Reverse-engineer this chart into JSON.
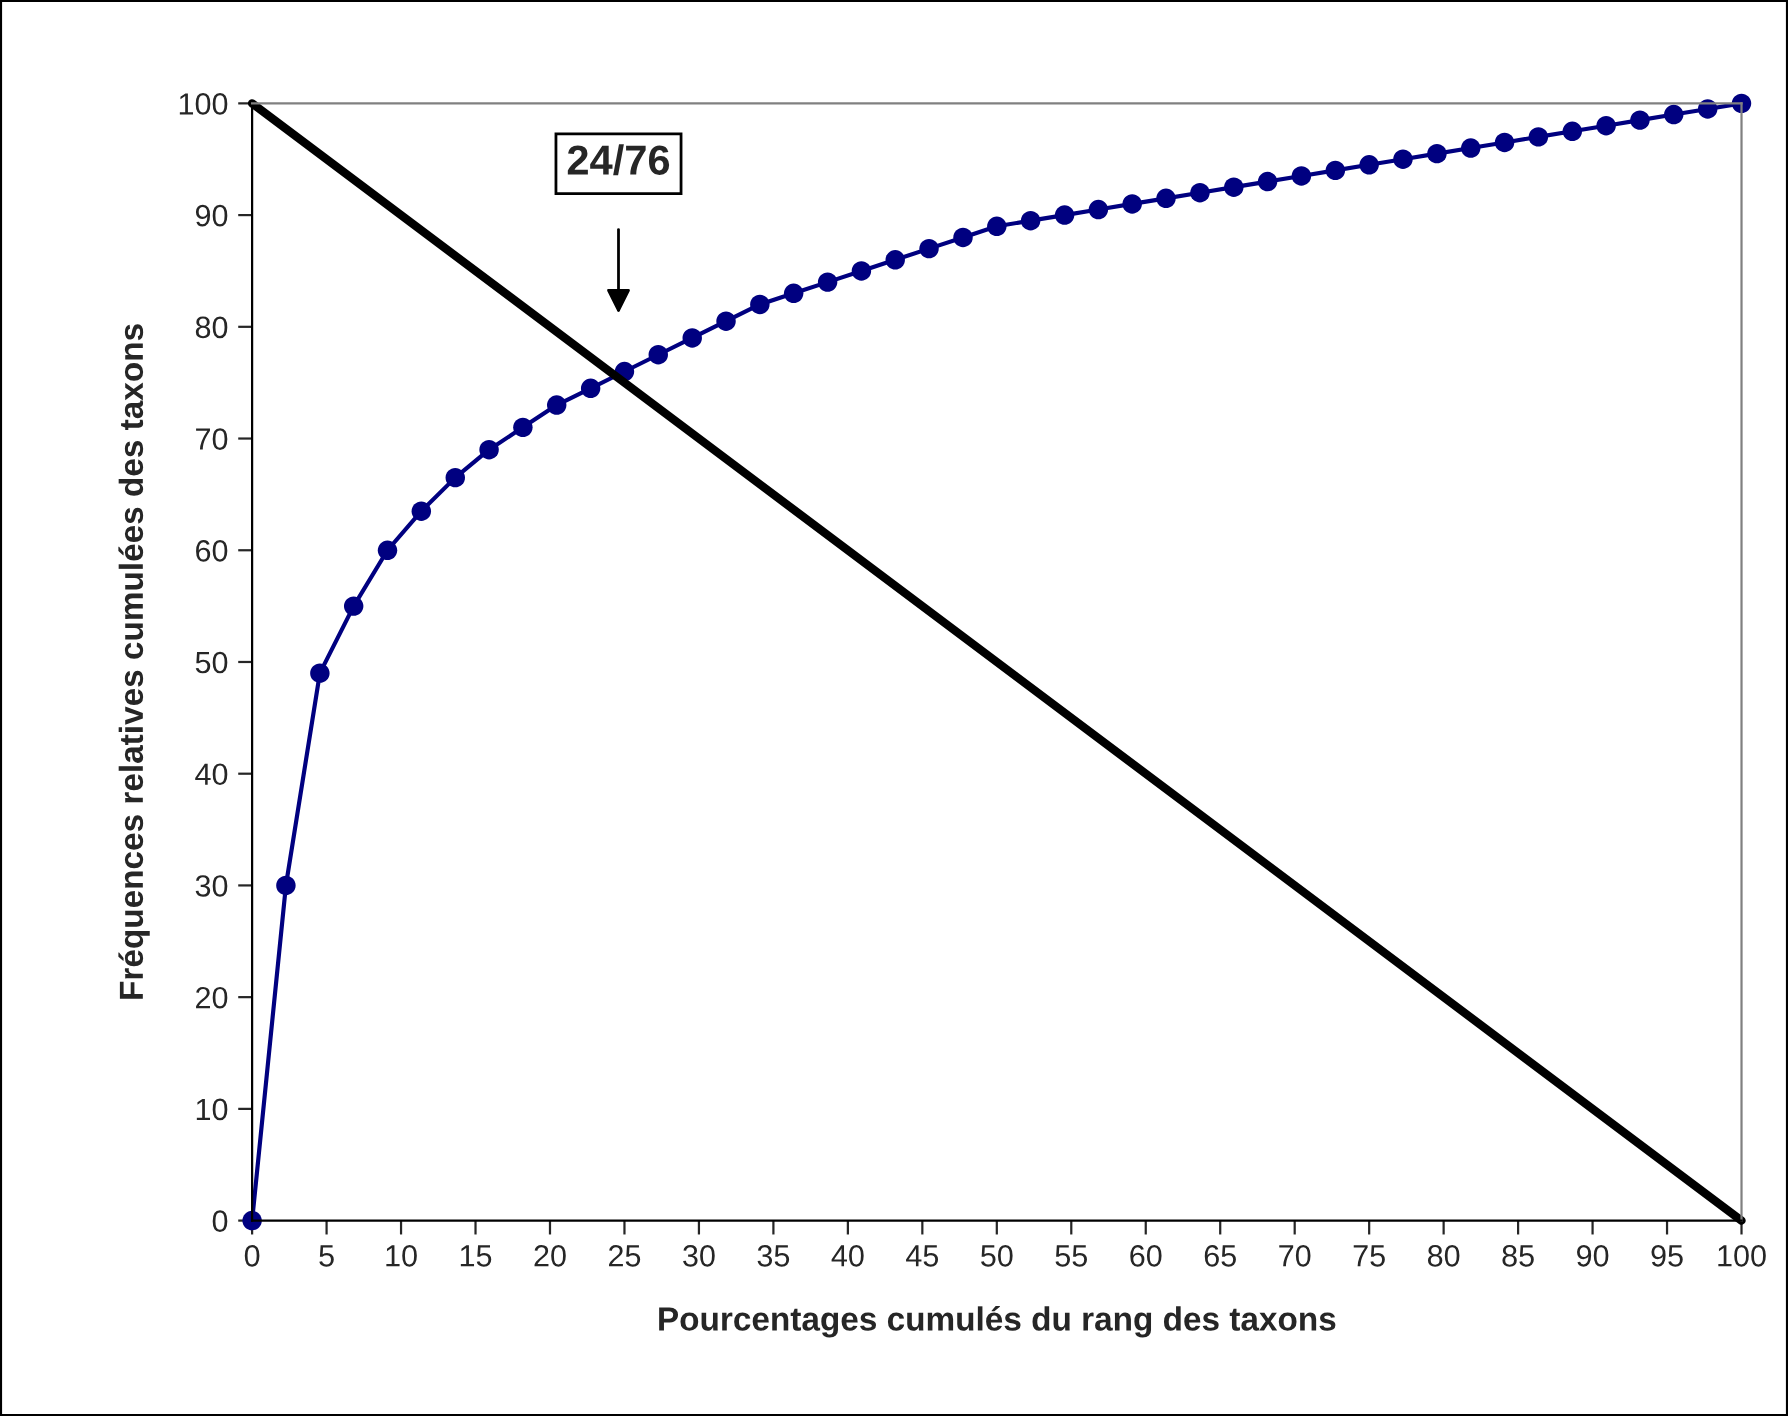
{
  "chart_data": {
    "type": "line",
    "xlabel": "Pourcentages cumulés du rang des taxons",
    "ylabel": "Fréquences relatives cumulées des taxons",
    "xlim": [
      0,
      100
    ],
    "xticks": [
      0,
      5,
      10,
      15,
      20,
      25,
      30,
      35,
      40,
      45,
      50,
      55,
      60,
      65,
      70,
      75,
      80,
      85,
      90,
      95,
      100
    ],
    "ylim": [
      0,
      100
    ],
    "yticks": [
      0,
      10,
      20,
      30,
      40,
      50,
      60,
      70,
      80,
      90,
      100
    ],
    "grid": false,
    "legend": false,
    "series": [
      {
        "color": "#000080",
        "marker": "circle",
        "x": [
          0,
          2.27,
          4.55,
          6.82,
          9.09,
          11.36,
          13.64,
          15.91,
          18.18,
          20.45,
          22.73,
          25,
          27.27,
          29.55,
          31.82,
          34.09,
          36.36,
          38.64,
          40.91,
          43.18,
          45.45,
          47.73,
          50,
          52.27,
          54.55,
          56.82,
          59.09,
          61.36,
          63.64,
          65.91,
          68.18,
          70.45,
          72.73,
          75,
          77.27,
          79.55,
          81.82,
          84.09,
          86.36,
          88.64,
          90.91,
          93.18,
          95.45,
          97.73,
          100
        ],
        "values": [
          0,
          30,
          49,
          55,
          60,
          63.5,
          66.5,
          69,
          71,
          73,
          74.5,
          76,
          77.5,
          79,
          80.5,
          82,
          83,
          84,
          85,
          86,
          87,
          88,
          89,
          89.5,
          90,
          90.5,
          91,
          91.5,
          92,
          92.5,
          93,
          93.5,
          94,
          94.5,
          95,
          95.5,
          96,
          96.5,
          97,
          97.5,
          98,
          98.5,
          99,
          99.5,
          100
        ]
      },
      {
        "color": "#000000",
        "marker": "none",
        "x": [
          0,
          100
        ],
        "values": [
          100,
          0
        ]
      }
    ],
    "annotations": [
      "24/76"
    ]
  }
}
